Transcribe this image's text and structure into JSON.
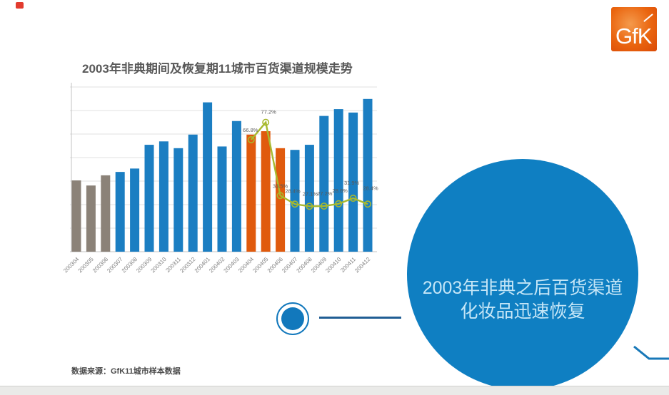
{
  "slide": {
    "logo_text": "GfK",
    "callout": {
      "line1": "2003年非典之后百货渠道",
      "line2": "化妆品迅速恢复"
    },
    "source": "数据来源：GfK11城市样本数据"
  },
  "chart_data": {
    "type": "bar",
    "title": "2003年非典期间及恢复期11城市百货渠道规模走势",
    "categories": [
      "200304",
      "200305",
      "200306",
      "200307",
      "200308",
      "200309",
      "200310",
      "200311",
      "200312",
      "200401",
      "200402",
      "200403",
      "200404",
      "200405",
      "200406",
      "200407",
      "200408",
      "200409",
      "200410",
      "200411",
      "200412"
    ],
    "series": [
      {
        "name": "bars-scale-index",
        "type": "bar",
        "values": [
          42,
          39,
          45,
          47,
          49,
          63,
          65,
          61,
          69,
          88,
          62,
          77,
          69,
          71,
          61,
          60,
          63,
          80,
          84,
          82,
          90
        ],
        "gray_indices": [
          0,
          1,
          2
        ],
        "orange_indices": [
          12,
          13,
          14
        ]
      },
      {
        "name": "growth-line-percent",
        "type": "line",
        "values": [
          null,
          null,
          null,
          null,
          null,
          null,
          null,
          null,
          null,
          null,
          null,
          null,
          66.8,
          77.2,
          33.5,
          28.4,
          27.1,
          27.2,
          28.6,
          31.9,
          28.4
        ],
        "labels": [
          "66.8%",
          "77.2%",
          "33.5%",
          "28.4%",
          "27.1%",
          "27.2%",
          "28.6%",
          "31.9%",
          "28.4%"
        ],
        "label_offsets": [
          [
            -1,
            -11
          ],
          [
            4,
            -12
          ],
          [
            0,
            -11
          ],
          [
            -3,
            -16
          ],
          [
            1,
            -15
          ],
          [
            1,
            -15
          ],
          [
            2,
            -16
          ],
          [
            -2,
            -19
          ],
          [
            4,
            -20
          ]
        ]
      }
    ],
    "ylim": [
      0,
      100
    ],
    "y2lim": [
      0,
      100
    ],
    "gridline_count": 8,
    "legend": "none",
    "x_tick_rotation": -45
  },
  "colors": {
    "bar_blue": "#1b7ec2",
    "bar_gray": "#8b8278",
    "bar_orange": "#e05a0d",
    "line_olive": "#a8b92e",
    "point_label": "#595959",
    "tick_label": "#7f7f7f",
    "grid": "#e0e0e0",
    "axis": "#c3c3c3",
    "circle_blue": "#0f7fc2",
    "circle_text": "#c5e6f7",
    "connector_blue": "#205e94",
    "corner_blue": "#1878b8",
    "logo_orange": "#ea650f"
  }
}
